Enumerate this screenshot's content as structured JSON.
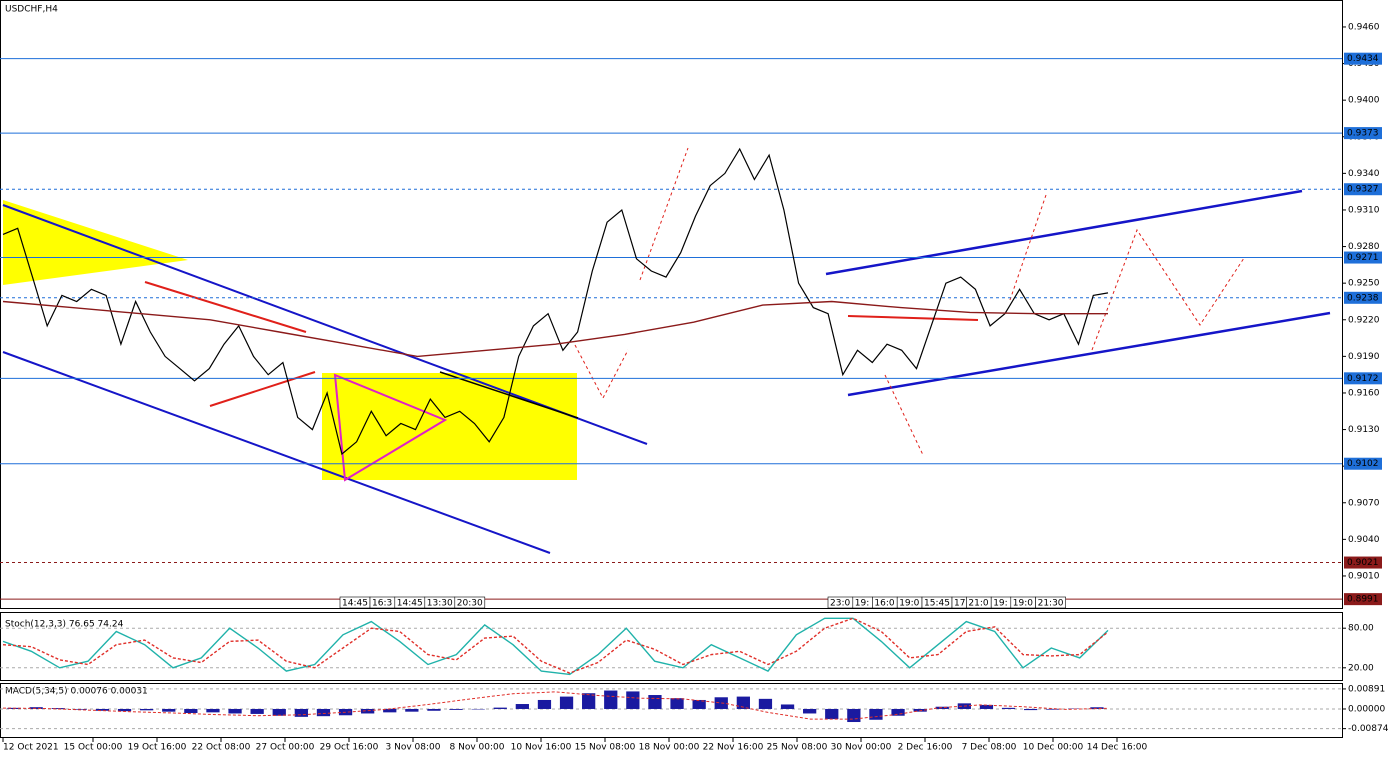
{
  "chart_data": [
    {
      "type": "line",
      "title": "USDCHF,H4",
      "ylim": [
        0.89862,
        0.94821
      ],
      "yticks": [
        {
          "value": 0.946,
          "label": "0.9460"
        },
        {
          "value": 0.943,
          "label": "0.9430"
        },
        {
          "value": 0.94,
          "label": "0.9400"
        },
        {
          "value": 0.937,
          "label": "0.9370"
        },
        {
          "value": 0.934,
          "label": "0.9340"
        },
        {
          "value": 0.931,
          "label": "0.9310"
        },
        {
          "value": 0.928,
          "label": "0.9280"
        },
        {
          "value": 0.925,
          "label": "0.9250"
        },
        {
          "value": 0.922,
          "label": "0.9220"
        },
        {
          "value": 0.919,
          "label": "0.9190"
        },
        {
          "value": 0.916,
          "label": "0.9160"
        },
        {
          "value": 0.913,
          "label": "0.9130"
        },
        {
          "value": 0.91,
          "label": "0.9100"
        },
        {
          "value": 0.907,
          "label": "0.9070"
        },
        {
          "value": 0.904,
          "label": "0.9040"
        },
        {
          "value": 0.901,
          "label": "0.9010"
        }
      ],
      "levels": [
        {
          "value": 0.9434,
          "color": "#1e6fd9",
          "dashed": false
        },
        {
          "value": 0.9373,
          "color": "#1e6fd9",
          "dashed": false
        },
        {
          "value": 0.9327,
          "color": "#1e6fd9",
          "dashed": true
        },
        {
          "value": 0.9271,
          "color": "#1e6fd9",
          "dashed": false
        },
        {
          "value": 0.9238,
          "color": "#1e6fd9",
          "dashed": true
        },
        {
          "value": 0.9172,
          "color": "#1e6fd9",
          "dashed": false
        },
        {
          "value": 0.9102,
          "color": "#1e6fd9",
          "dashed": false
        },
        {
          "value": 0.9021,
          "color": "#8b1a1a",
          "dashed": true
        },
        {
          "value": 0.8991,
          "color": "#8b1a1a",
          "dashed": false
        }
      ],
      "series": [
        {
          "color": "#000000",
          "values": [
            0.929,
            0.9295,
            0.9255,
            0.9215,
            0.924,
            0.9235,
            0.9245,
            0.924,
            0.92,
            0.9235,
            0.921,
            0.919,
            0.918,
            0.917,
            0.918,
            0.92,
            0.9215,
            0.919,
            0.9175,
            0.9185,
            0.914,
            0.913,
            0.916,
            0.911,
            0.912,
            0.9145,
            0.9125,
            0.9135,
            0.913,
            0.9155,
            0.914,
            0.9145,
            0.9135,
            0.912,
            0.914,
            0.919,
            0.9215,
            0.9225,
            0.9195,
            0.921,
            0.926,
            0.93,
            0.931,
            0.927,
            0.926,
            0.9255,
            0.9275,
            0.9305,
            0.933,
            0.934,
            0.936,
            0.9335,
            0.9355,
            0.931,
            0.925,
            0.923,
            0.9225,
            0.9175,
            0.9195,
            0.9185,
            0.92,
            0.9195,
            0.918,
            0.9215,
            0.925,
            0.9255,
            0.9245,
            0.9215,
            0.9225,
            0.9245,
            0.9225,
            0.922,
            0.9225,
            0.92,
            0.924,
            0.9242
          ]
        },
        {
          "color": "#8b1a1a",
          "values": [
            0.9235,
            0.923,
            0.9225,
            0.922,
            0.921,
            0.92,
            0.919,
            0.9195,
            0.92,
            0.9208,
            0.9218,
            0.9232,
            0.9235,
            0.923,
            0.9226,
            0.9225,
            0.9225
          ]
        }
      ],
      "time_markers": [
        [
          "14:45",
          "16:3",
          "14:45",
          "13:30",
          "20:30"
        ],
        [
          "23:0",
          "19:",
          "16:0",
          "19:0",
          "15:45",
          "17",
          "21:0",
          "19:",
          "19:0",
          "21:30"
        ]
      ],
      "date_labels": [
        "12 Oct 2021",
        "15 Oct 00:00",
        "19 Oct 16:00",
        "22 Oct 08:00",
        "27 Oct 00:00",
        "29 Oct 16:00",
        "3 Nov 08:00",
        "8 Nov 00:00",
        "10 Nov 16:00",
        "15 Nov 08:00",
        "18 Nov 00:00",
        "22 Nov 16:00",
        "25 Nov 08:00",
        "30 Nov 00:00",
        "2 Dec 16:00",
        "7 Dec 08:00",
        "10 Dec 00:00",
        "14 Dec 16:00"
      ]
    },
    {
      "type": "line",
      "title": "Stoch(12,3,3) 76.65 74.24",
      "ylim": [
        0,
        100
      ],
      "yticks": [
        {
          "value": 80,
          "label": "80.00"
        },
        {
          "value": 20,
          "label": "20.00"
        }
      ],
      "series": [
        {
          "color": "#20b2aa",
          "values": [
            60,
            45,
            20,
            30,
            75,
            55,
            20,
            35,
            80,
            50,
            15,
            25,
            70,
            90,
            60,
            25,
            40,
            85,
            55,
            15,
            10,
            40,
            80,
            30,
            20,
            55,
            35,
            15,
            70,
            95,
            95,
            60,
            20,
            55,
            90,
            75,
            20,
            50,
            35,
            76.65
          ]
        },
        {
          "color": "#e0302a",
          "dashed": true,
          "values": [
            55,
            52,
            32,
            25,
            55,
            62,
            35,
            28,
            60,
            62,
            30,
            20,
            50,
            80,
            75,
            40,
            32,
            65,
            68,
            30,
            12,
            28,
            62,
            48,
            25,
            40,
            45,
            25,
            45,
            80,
            95,
            75,
            35,
            40,
            75,
            82,
            40,
            38,
            40,
            74.24
          ]
        }
      ]
    },
    {
      "type": "bar",
      "title": "MACD(5,34,5) 0.00076 0.00031",
      "ylim": [
        -0.0129,
        0.0111
      ],
      "yticks": [
        0.00891,
        {
          "value": 0,
          "label": "0.00000"
        },
        -0.00874
      ],
      "color": "#1a1aa0",
      "values": [
        0.0005,
        0.0008,
        0.0004,
        -0.0003,
        -0.0008,
        -0.001,
        -0.0006,
        -0.0012,
        -0.0018,
        -0.0015,
        -0.002,
        -0.0022,
        -0.003,
        -0.0035,
        -0.0032,
        -0.0028,
        -0.002,
        -0.0015,
        -0.0012,
        -0.0008,
        -0.0004,
        -0.0002,
        0.0006,
        0.0022,
        0.004,
        0.0055,
        0.007,
        0.0082,
        0.0078,
        0.0062,
        0.0048,
        0.004,
        0.0052,
        0.0055,
        0.0045,
        0.002,
        -0.002,
        -0.0045,
        -0.0058,
        -0.0048,
        -0.003,
        -0.0012,
        0.001,
        0.0025,
        0.0018,
        0.0005,
        -0.0005,
        -0.0003,
        0.0002,
        0.00076
      ],
      "signal": {
        "color": "#e0302a",
        "values": [
          0.0004,
          0.0002,
          -0.0005,
          -0.0012,
          -0.0018,
          -0.0025,
          -0.003,
          -0.0026,
          -0.0015,
          -0.0002,
          0.002,
          0.0045,
          0.0068,
          0.0076,
          0.006,
          0.0048,
          0.0045,
          0.0025,
          -0.0015,
          -0.0045,
          -0.0045,
          -0.0025,
          0.0005,
          0.0018,
          0.001,
          -0.0002,
          0.00031
        ]
      }
    }
  ]
}
